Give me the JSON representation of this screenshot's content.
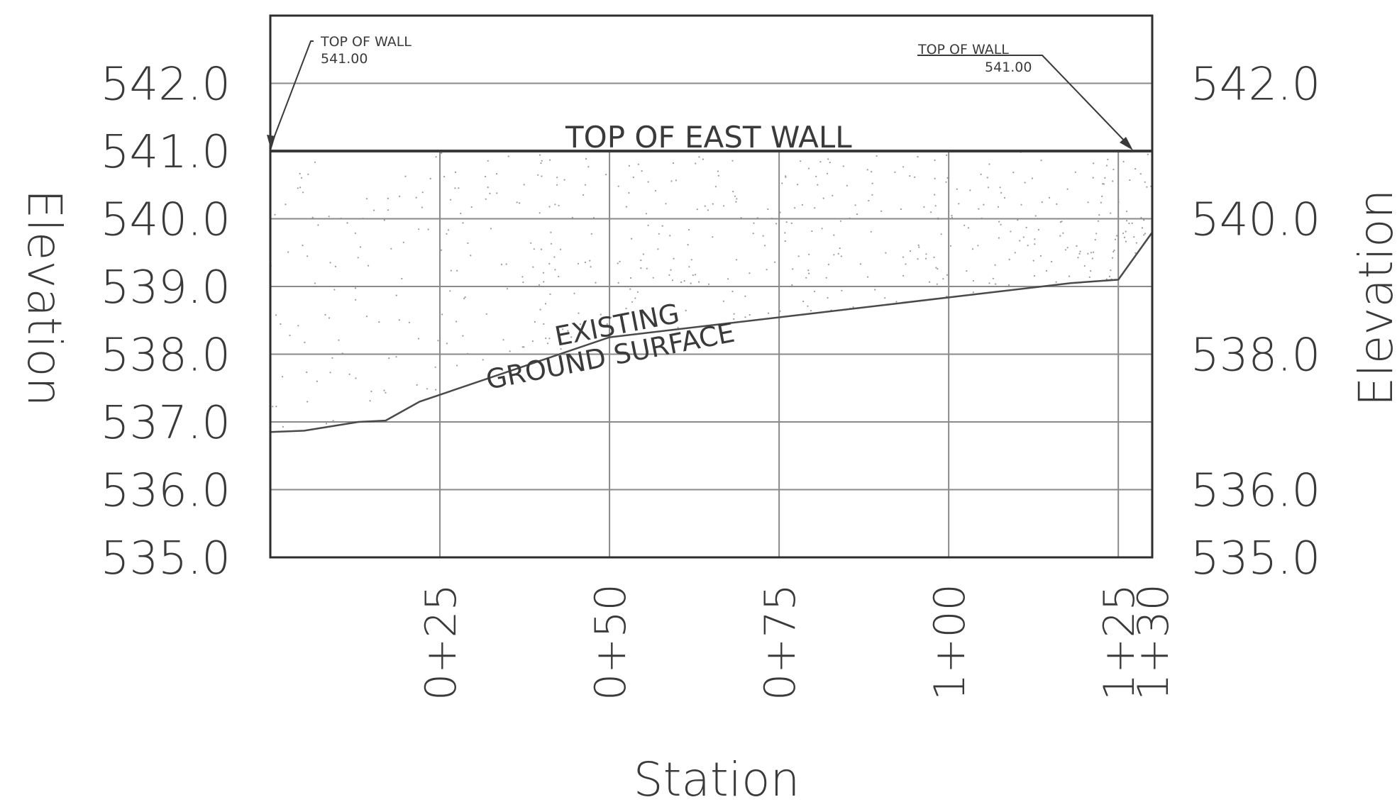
{
  "chart_data": {
    "type": "line",
    "xlabel": "Station",
    "ylabel_left": "Elevation",
    "ylabel_right": "Elevation",
    "xlim": [
      0,
      130
    ],
    "ylim": [
      535.0,
      543.0
    ],
    "x_ticks": [
      25,
      50,
      75,
      100,
      125,
      130
    ],
    "x_tick_labels": [
      "0+25",
      "0+50",
      "0+75",
      "1+00",
      "1+25",
      "1+30"
    ],
    "y_ticks_left": [
      535,
      536,
      537,
      538,
      539,
      540,
      541,
      542
    ],
    "y_tick_labels_left": [
      "535.0",
      "536.0",
      "537.0",
      "538.0",
      "539.0",
      "540.0",
      "541.0",
      "542.0"
    ],
    "y_ticks_right": [
      535,
      536,
      538,
      540,
      542
    ],
    "y_tick_labels_right": [
      "535.0",
      "536.0",
      "538.0",
      "540.0",
      "542.0"
    ],
    "grid": true,
    "series": [
      {
        "name": "EXISTING GROUND SURFACE",
        "x": [
          0,
          5,
          13,
          17,
          22,
          50,
          125,
          118,
          130
        ],
        "y": [
          536.85,
          536.87,
          537.0,
          537.02,
          537.3,
          538.25,
          539.1,
          539.05,
          539.8
        ],
        "color": "#4a4a4a"
      },
      {
        "name": "TOP OF EAST WALL",
        "x": [
          0,
          130
        ],
        "y": [
          541.0,
          541.0
        ],
        "color": "#3a3a3a"
      }
    ],
    "annotations": {
      "wall_left_title": "TOP OF WALL",
      "wall_left_value": "541.00",
      "wall_right_title": "TOP OF WALL",
      "wall_right_value": "541.00",
      "east_wall": "TOP OF EAST WALL",
      "existing": "EXISTING",
      "ground_surface": "GROUND SURFACE"
    }
  }
}
